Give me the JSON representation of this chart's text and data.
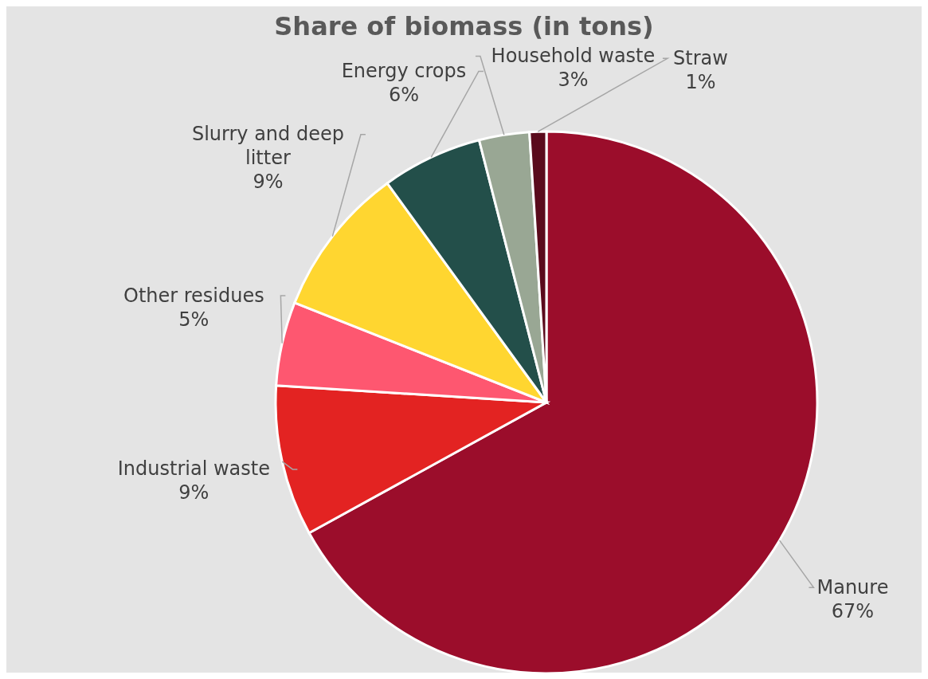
{
  "chart_data": {
    "type": "pie",
    "title": "Share of biomass (in tons)",
    "categories": [
      "Manure",
      "Industrial waste",
      "Other residues",
      "Slurry and deep litter",
      "Energy crops",
      "Household waste",
      "Straw"
    ],
    "values": [
      67,
      9,
      5,
      9,
      6,
      3,
      1
    ],
    "value_labels": [
      "67%",
      "9%",
      "5%",
      "9%",
      "6%",
      "3%",
      "1%"
    ],
    "colors": [
      "#9b0d2b",
      "#e32322",
      "#fe5770",
      "#ffd630",
      "#234f4a",
      "#99a794",
      "#5a0a1c"
    ],
    "legend": false
  }
}
